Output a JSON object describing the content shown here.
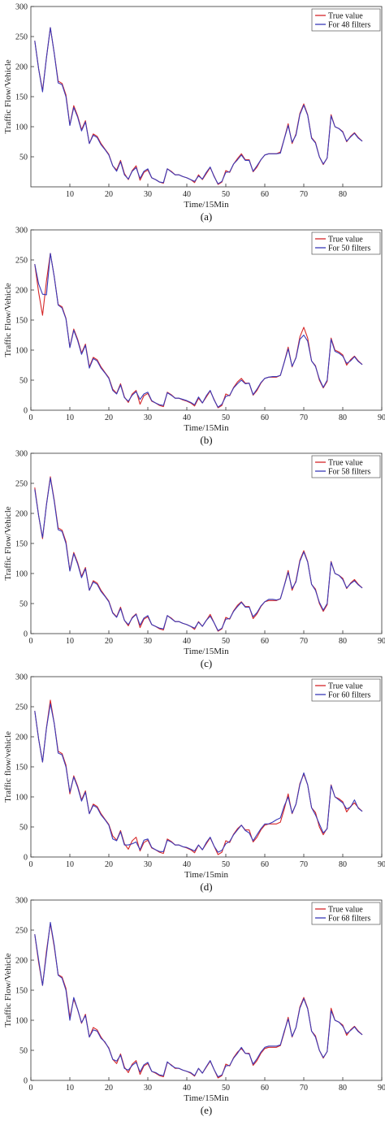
{
  "chart_data": [
    {
      "type": "line",
      "caption": "(a)",
      "xlabel": "Time/15Min",
      "ylabel": "Traffic Flow/Vehicle",
      "xlim": [
        0,
        90
      ],
      "ylim": [
        0,
        300
      ],
      "xticks": [
        10,
        20,
        30,
        40,
        50,
        60,
        70,
        80
      ],
      "yticks": [
        50,
        100,
        150,
        200,
        250,
        300
      ],
      "legend_position": "top-right",
      "series": [
        {
          "name": "True value",
          "color": "#d62728",
          "values": [
            243,
            196,
            160,
            215,
            265,
            222,
            176,
            172,
            153,
            103,
            135,
            118,
            95,
            110,
            72,
            88,
            84,
            72,
            63,
            54,
            35,
            28,
            44,
            22,
            12,
            27,
            35,
            11,
            24,
            28,
            15,
            12,
            8,
            6,
            30,
            26,
            20,
            20,
            17,
            15,
            12,
            7,
            20,
            12,
            22,
            32,
            18,
            4,
            8,
            27,
            24,
            38,
            47,
            55,
            45,
            45,
            25,
            33,
            45,
            53,
            55,
            55,
            55,
            58,
            80,
            105,
            72,
            88,
            122,
            138,
            120,
            82,
            74,
            50,
            37,
            48,
            120,
            100,
            97,
            92,
            75,
            84,
            90,
            82,
            76
          ]
        },
        {
          "name": "For 48 filters",
          "color": "#3a3ab8",
          "values": [
            243,
            196,
            158,
            215,
            265,
            222,
            173,
            170,
            150,
            102,
            132,
            116,
            93,
            108,
            72,
            86,
            82,
            70,
            62,
            53,
            35,
            26,
            42,
            20,
            13,
            26,
            32,
            14,
            26,
            30,
            15,
            12,
            8,
            7,
            30,
            25,
            20,
            20,
            17,
            15,
            12,
            9,
            18,
            13,
            24,
            33,
            17,
            5,
            9,
            24,
            25,
            38,
            45,
            53,
            44,
            44,
            26,
            35,
            45,
            53,
            55,
            55,
            55,
            56,
            80,
            102,
            74,
            86,
            120,
            136,
            119,
            81,
            73,
            50,
            38,
            48,
            118,
            100,
            97,
            91,
            76,
            83,
            89,
            81,
            76
          ]
        }
      ]
    },
    {
      "type": "line",
      "caption": "(b)",
      "xlabel": "Time/15Min",
      "ylabel": "Traffic Flow/Vehicle",
      "xlim": [
        0,
        90
      ],
      "ylim": [
        0,
        300
      ],
      "xticks": [
        0,
        10,
        20,
        30,
        40,
        50,
        60,
        70,
        80,
        90
      ],
      "yticks": [
        0,
        50,
        100,
        150,
        200,
        250,
        300
      ],
      "legend_position": "top-right",
      "series": [
        {
          "name": "True value",
          "color": "#d62728",
          "values": [
            243,
            196,
            158,
            215,
            261,
            222,
            176,
            172,
            153,
            105,
            135,
            118,
            95,
            110,
            72,
            88,
            84,
            72,
            63,
            54,
            35,
            28,
            44,
            22,
            13,
            27,
            33,
            10,
            24,
            28,
            15,
            12,
            8,
            6,
            30,
            26,
            20,
            20,
            17,
            15,
            12,
            7,
            20,
            12,
            22,
            32,
            18,
            4,
            8,
            27,
            24,
            38,
            47,
            53,
            45,
            45,
            25,
            33,
            45,
            53,
            55,
            55,
            55,
            58,
            80,
            105,
            72,
            88,
            122,
            138,
            120,
            82,
            74,
            50,
            37,
            48,
            120,
            100,
            97,
            92,
            75,
            84,
            90,
            82,
            76
          ]
        },
        {
          "name": "For 50 filters",
          "color": "#3a3ab8",
          "values": [
            243,
            210,
            193,
            192,
            261,
            222,
            175,
            170,
            152,
            104,
            133,
            116,
            93,
            108,
            70,
            86,
            82,
            70,
            62,
            53,
            33,
            27,
            42,
            21,
            15,
            25,
            31,
            18,
            27,
            30,
            16,
            12,
            9,
            8,
            29,
            25,
            20,
            20,
            18,
            16,
            13,
            9,
            22,
            12,
            24,
            33,
            17,
            5,
            10,
            23,
            25,
            37,
            44,
            50,
            44,
            45,
            26,
            35,
            46,
            53,
            55,
            56,
            56,
            58,
            80,
            102,
            73,
            87,
            118,
            125,
            115,
            82,
            73,
            52,
            38,
            50,
            118,
            98,
            95,
            90,
            78,
            82,
            89,
            81,
            76
          ]
        }
      ]
    },
    {
      "type": "line",
      "caption": "(c)",
      "xlabel": "Time/15Min",
      "ylabel": "Traffic Flow/Vehicle",
      "xlim": [
        0,
        90
      ],
      "ylim": [
        0,
        300
      ],
      "xticks": [
        0,
        10,
        20,
        30,
        40,
        50,
        60,
        70,
        80,
        90
      ],
      "yticks": [
        0,
        50,
        100,
        150,
        200,
        250,
        300
      ],
      "legend_position": "top-right",
      "series": [
        {
          "name": "True value",
          "color": "#d62728",
          "values": [
            243,
            196,
            158,
            215,
            261,
            222,
            176,
            172,
            153,
            105,
            135,
            118,
            95,
            110,
            72,
            88,
            84,
            72,
            63,
            54,
            35,
            28,
            44,
            22,
            13,
            27,
            33,
            10,
            24,
            28,
            15,
            12,
            8,
            6,
            30,
            26,
            20,
            20,
            17,
            15,
            12,
            7,
            20,
            12,
            22,
            32,
            18,
            4,
            8,
            27,
            24,
            38,
            47,
            53,
            45,
            45,
            25,
            33,
            45,
            53,
            55,
            55,
            55,
            58,
            80,
            105,
            72,
            88,
            122,
            138,
            120,
            82,
            74,
            50,
            37,
            48,
            120,
            100,
            97,
            92,
            75,
            84,
            90,
            82,
            76
          ]
        },
        {
          "name": "For 58 filters",
          "color": "#3a3ab8",
          "values": [
            240,
            196,
            160,
            214,
            259,
            220,
            173,
            170,
            150,
            104,
            133,
            116,
            93,
            108,
            72,
            86,
            82,
            70,
            62,
            53,
            34,
            27,
            42,
            22,
            15,
            26,
            32,
            14,
            26,
            30,
            15,
            12,
            9,
            8,
            30,
            25,
            20,
            20,
            17,
            15,
            12,
            9,
            19,
            12,
            22,
            29,
            18,
            5,
            9,
            24,
            25,
            37,
            45,
            52,
            44,
            44,
            28,
            35,
            46,
            53,
            57,
            57,
            56,
            58,
            80,
            102,
            75,
            86,
            120,
            136,
            119,
            82,
            72,
            52,
            39,
            50,
            119,
            100,
            97,
            90,
            76,
            83,
            88,
            81,
            76
          ]
        }
      ]
    },
    {
      "type": "line",
      "caption": "(d)",
      "xlabel": "Time/15min",
      "ylabel": "Traffic flow/vehicle",
      "xlim": [
        0,
        90
      ],
      "ylim": [
        0,
        300
      ],
      "xticks": [
        0,
        10,
        20,
        30,
        40,
        50,
        60,
        70,
        80,
        90
      ],
      "yticks": [
        0,
        50,
        100,
        150,
        200,
        250,
        300
      ],
      "legend_position": "top-right",
      "series": [
        {
          "name": "True value",
          "color": "#d62728",
          "values": [
            243,
            196,
            158,
            215,
            261,
            222,
            176,
            172,
            153,
            105,
            135,
            118,
            95,
            110,
            72,
            88,
            84,
            72,
            63,
            54,
            35,
            28,
            44,
            22,
            13,
            27,
            33,
            10,
            24,
            28,
            15,
            12,
            8,
            6,
            30,
            26,
            20,
            20,
            17,
            15,
            12,
            7,
            20,
            12,
            22,
            32,
            18,
            4,
            8,
            27,
            24,
            38,
            47,
            53,
            45,
            45,
            25,
            33,
            45,
            53,
            55,
            55,
            55,
            58,
            80,
            105,
            72,
            88,
            122,
            138,
            120,
            82,
            74,
            50,
            37,
            48,
            120,
            100,
            97,
            92,
            75,
            84,
            90,
            82,
            76
          ]
        },
        {
          "name": "For 60 filters",
          "color": "#3a3ab8",
          "values": [
            243,
            196,
            158,
            214,
            255,
            222,
            173,
            170,
            150,
            108,
            133,
            116,
            93,
            108,
            72,
            86,
            82,
            70,
            62,
            53,
            30,
            27,
            42,
            20,
            20,
            22,
            25,
            12,
            28,
            30,
            16,
            12,
            9,
            9,
            28,
            25,
            20,
            20,
            17,
            16,
            13,
            10,
            20,
            12,
            24,
            33,
            18,
            8,
            11,
            22,
            26,
            37,
            45,
            53,
            44,
            40,
            27,
            37,
            47,
            55,
            55,
            58,
            62,
            65,
            85,
            100,
            73,
            88,
            120,
            140,
            120,
            82,
            70,
            55,
            40,
            47,
            119,
            100,
            95,
            90,
            80,
            83,
            95,
            81,
            76
          ]
        }
      ]
    },
    {
      "type": "line",
      "caption": "(e)",
      "xlabel": "Time/15Min",
      "ylabel": "Traffic Flow/Vehicle",
      "xlim": [
        0,
        90
      ],
      "ylim": [
        0,
        300
      ],
      "xticks": [
        0,
        10,
        20,
        30,
        40,
        50,
        60,
        70,
        80,
        90
      ],
      "yticks": [
        0,
        50,
        100,
        150,
        200,
        250,
        300
      ],
      "legend_position": "top-right",
      "series": [
        {
          "name": "True value",
          "color": "#d62728",
          "values": [
            243,
            196,
            158,
            215,
            261,
            222,
            176,
            172,
            153,
            105,
            135,
            118,
            95,
            110,
            72,
            88,
            84,
            72,
            63,
            54,
            35,
            28,
            44,
            22,
            13,
            27,
            33,
            10,
            24,
            28,
            15,
            12,
            8,
            6,
            30,
            26,
            20,
            20,
            17,
            15,
            12,
            7,
            20,
            12,
            22,
            32,
            18,
            4,
            8,
            27,
            24,
            38,
            47,
            53,
            45,
            45,
            25,
            33,
            45,
            53,
            55,
            55,
            55,
            58,
            80,
            105,
            72,
            88,
            122,
            138,
            120,
            82,
            74,
            50,
            37,
            48,
            120,
            100,
            97,
            92,
            75,
            84,
            90,
            82,
            76
          ]
        },
        {
          "name": "For 68 filters",
          "color": "#3a3ab8",
          "values": [
            243,
            200,
            158,
            210,
            263,
            225,
            175,
            170,
            150,
            100,
            138,
            118,
            96,
            108,
            72,
            84,
            82,
            70,
            64,
            53,
            35,
            32,
            42,
            20,
            17,
            25,
            30,
            14,
            26,
            30,
            15,
            13,
            9,
            8,
            31,
            25,
            21,
            20,
            17,
            15,
            13,
            8,
            20,
            12,
            23,
            33,
            18,
            6,
            9,
            24,
            25,
            37,
            45,
            55,
            45,
            44,
            27,
            36,
            47,
            55,
            57,
            57,
            57,
            59,
            82,
            102,
            73,
            88,
            120,
            136,
            119,
            82,
            72,
            50,
            38,
            48,
            116,
            100,
            97,
            90,
            78,
            83,
            89,
            81,
            76
          ]
        }
      ]
    }
  ]
}
